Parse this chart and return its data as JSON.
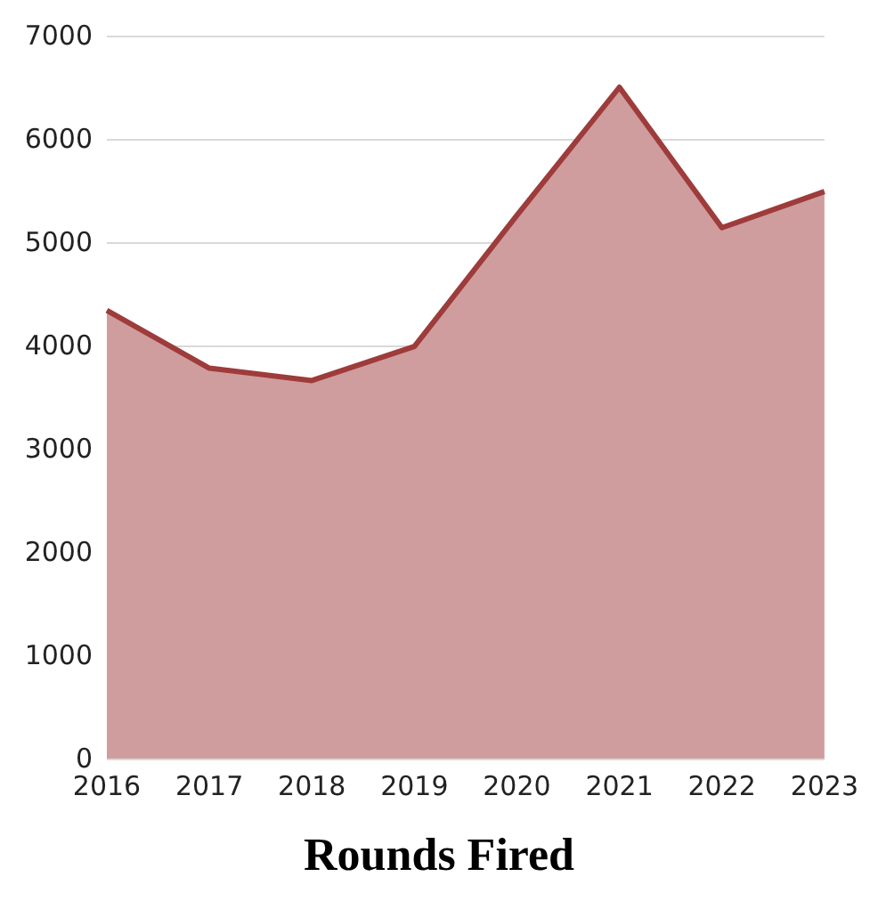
{
  "chart_data": {
    "type": "area",
    "title": "Rounds Fired",
    "categories": [
      "2016",
      "2017",
      "2018",
      "2019",
      "2020",
      "2021",
      "2022",
      "2023"
    ],
    "series": [
      {
        "color": "#9e3b3b",
        "values": [
          4340,
          3780,
          3660,
          3990,
          5260,
          6500,
          5140,
          5490
        ]
      }
    ],
    "ylim": [
      0,
      7000
    ],
    "yticks": [
      0,
      1000,
      2000,
      3000,
      4000,
      5000,
      6000,
      7000
    ],
    "grid": "y"
  }
}
